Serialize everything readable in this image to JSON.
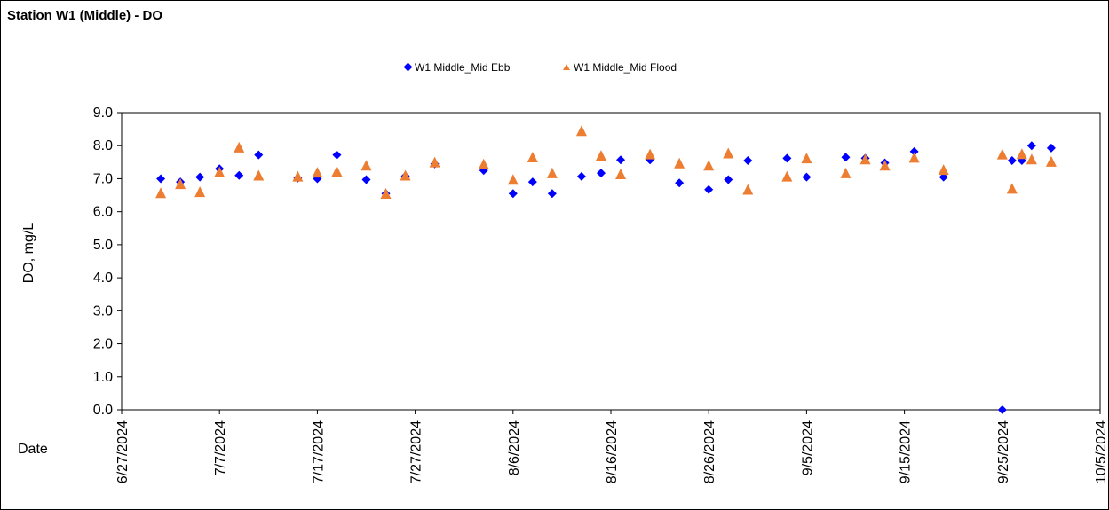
{
  "chart_data": {
    "type": "scatter",
    "title": "Station W1 (Middle) - DO",
    "xlabel": "Date",
    "ylabel": "DO, mg/L",
    "xlim": [
      "6/27/2024",
      "10/5/2024"
    ],
    "ylim": [
      0,
      9
    ],
    "x_ticks": [
      "6/27/2024",
      "7/7/2024",
      "7/17/2024",
      "7/27/2024",
      "8/6/2024",
      "8/16/2024",
      "8/26/2024",
      "9/5/2024",
      "9/15/2024",
      "9/25/2024",
      "10/5/2024"
    ],
    "y_ticks": [
      "0.0",
      "1.0",
      "2.0",
      "3.0",
      "4.0",
      "5.0",
      "6.0",
      "7.0",
      "8.0",
      "9.0"
    ],
    "grid": false,
    "legend_position": "top-center",
    "series": [
      {
        "name": "W1 Middle_Mid Ebb",
        "marker": "diamond",
        "color": "#0000FF",
        "points": [
          [
            "2024-07-01",
            7.0
          ],
          [
            "2024-07-03",
            6.9
          ],
          [
            "2024-07-05",
            7.05
          ],
          [
            "2024-07-07",
            7.3
          ],
          [
            "2024-07-09",
            7.1
          ],
          [
            "2024-07-11",
            7.72
          ],
          [
            "2024-07-15",
            7.02
          ],
          [
            "2024-07-17",
            7.0
          ],
          [
            "2024-07-19",
            7.72
          ],
          [
            "2024-07-22",
            6.97
          ],
          [
            "2024-07-24",
            6.55
          ],
          [
            "2024-07-26",
            7.08
          ],
          [
            "2024-07-29",
            7.45
          ],
          [
            "2024-08-03",
            7.25
          ],
          [
            "2024-08-06",
            6.55
          ],
          [
            "2024-08-08",
            6.9
          ],
          [
            "2024-08-10",
            6.55
          ],
          [
            "2024-08-13",
            7.07
          ],
          [
            "2024-08-15",
            7.17
          ],
          [
            "2024-08-17",
            7.57
          ],
          [
            "2024-08-20",
            7.57
          ],
          [
            "2024-08-23",
            6.87
          ],
          [
            "2024-08-26",
            6.67
          ],
          [
            "2024-08-28",
            6.97
          ],
          [
            "2024-08-30",
            7.55
          ],
          [
            "2024-09-03",
            7.62
          ],
          [
            "2024-09-05",
            7.05
          ],
          [
            "2024-09-09",
            7.65
          ],
          [
            "2024-09-11",
            7.62
          ],
          [
            "2024-09-13",
            7.48
          ],
          [
            "2024-09-16",
            7.82
          ],
          [
            "2024-09-19",
            7.05
          ],
          [
            "2024-09-25",
            0.0
          ],
          [
            "2024-09-26",
            7.55
          ],
          [
            "2024-09-27",
            7.55
          ],
          [
            "2024-09-28",
            8.0
          ],
          [
            "2024-09-30",
            7.93
          ]
        ]
      },
      {
        "name": "W1 Middle_Mid Flood",
        "marker": "triangle",
        "color": "#ED7D31",
        "points": [
          [
            "2024-07-01",
            6.55
          ],
          [
            "2024-07-03",
            6.82
          ],
          [
            "2024-07-05",
            6.58
          ],
          [
            "2024-07-07",
            7.18
          ],
          [
            "2024-07-09",
            7.93
          ],
          [
            "2024-07-11",
            7.08
          ],
          [
            "2024-07-15",
            7.05
          ],
          [
            "2024-07-17",
            7.17
          ],
          [
            "2024-07-19",
            7.2
          ],
          [
            "2024-07-22",
            7.38
          ],
          [
            "2024-07-24",
            6.53
          ],
          [
            "2024-07-26",
            7.08
          ],
          [
            "2024-07-29",
            7.48
          ],
          [
            "2024-08-03",
            7.42
          ],
          [
            "2024-08-06",
            6.95
          ],
          [
            "2024-08-08",
            7.63
          ],
          [
            "2024-08-10",
            7.15
          ],
          [
            "2024-08-13",
            8.43
          ],
          [
            "2024-08-15",
            7.68
          ],
          [
            "2024-08-17",
            7.12
          ],
          [
            "2024-08-20",
            7.72
          ],
          [
            "2024-08-23",
            7.45
          ],
          [
            "2024-08-26",
            7.38
          ],
          [
            "2024-08-28",
            7.75
          ],
          [
            "2024-08-30",
            6.65
          ],
          [
            "2024-09-03",
            7.05
          ],
          [
            "2024-09-05",
            7.6
          ],
          [
            "2024-09-09",
            7.15
          ],
          [
            "2024-09-11",
            7.57
          ],
          [
            "2024-09-13",
            7.38
          ],
          [
            "2024-09-16",
            7.62
          ],
          [
            "2024-09-19",
            7.25
          ],
          [
            "2024-09-25",
            7.72
          ],
          [
            "2024-09-26",
            6.68
          ],
          [
            "2024-09-27",
            7.73
          ],
          [
            "2024-09-28",
            7.57
          ],
          [
            "2024-09-30",
            7.5
          ]
        ]
      }
    ]
  }
}
